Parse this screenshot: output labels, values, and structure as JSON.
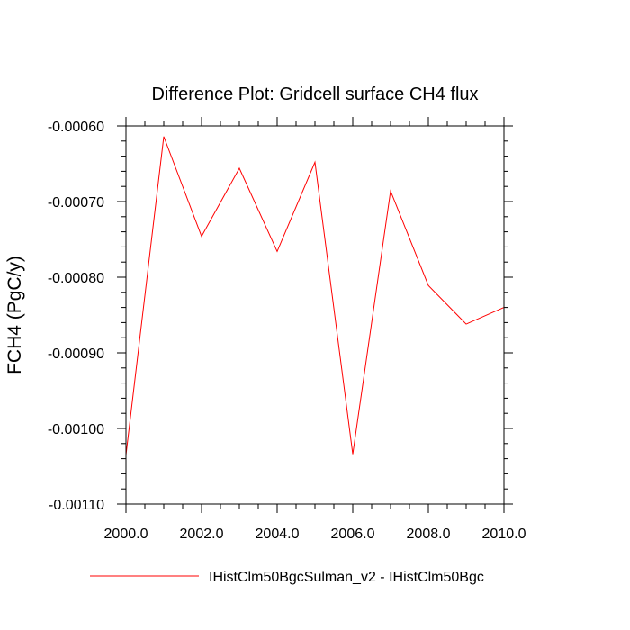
{
  "chart_data": {
    "type": "line",
    "title": "Difference Plot: Gridcell surface CH4 flux",
    "xlabel": "",
    "ylabel": "FCH4  (PgC/y)",
    "xlim": [
      2000.0,
      2010.0
    ],
    "ylim": [
      -0.0011,
      -0.0006
    ],
    "xticks": [
      2000.0,
      2002.0,
      2004.0,
      2006.0,
      2008.0,
      2010.0
    ],
    "xtick_labels": [
      "2000.0",
      "2002.0",
      "2004.0",
      "2006.0",
      "2008.0",
      "2010.0"
    ],
    "yticks": [
      -0.0006,
      -0.0007,
      -0.0008,
      -0.0009,
      -0.001,
      -0.0011
    ],
    "ytick_labels": [
      "-0.00060",
      "-0.00070",
      "-0.00080",
      "-0.00090",
      "-0.00100",
      "-0.00110"
    ],
    "grid": false,
    "legend_position": "bottom",
    "series": [
      {
        "name": "IHistClm50BgcSulman_v2 - IHistClm50Bgc",
        "color": "#ff0000",
        "x": [
          2000,
          2001,
          2002,
          2003,
          2004,
          2005,
          2006,
          2007,
          2008,
          2009,
          2010
        ],
        "values": [
          -0.001035,
          -0.000614,
          -0.000746,
          -0.000656,
          -0.000766,
          -0.000648,
          -0.001034,
          -0.000686,
          -0.000811,
          -0.000862,
          -0.00084
        ]
      }
    ]
  }
}
